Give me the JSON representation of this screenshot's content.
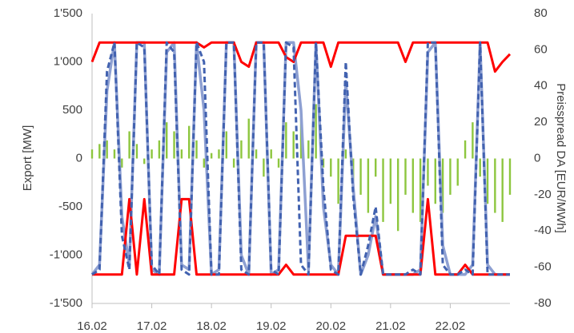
{
  "chart_data": {
    "type": "line",
    "ylabel": "Export [MW]",
    "y2label": "Preisspread DA [EUR/MWh]",
    "xlim": [
      16,
      23
    ],
    "xticks": [
      {
        "value": 16,
        "label": "16.02"
      },
      {
        "value": 17,
        "label": "17.02"
      },
      {
        "value": 18,
        "label": "18.02"
      },
      {
        "value": 19,
        "label": "19.02"
      },
      {
        "value": 20,
        "label": "20.02"
      },
      {
        "value": 21,
        "label": "21.02"
      },
      {
        "value": 22,
        "label": "22.02"
      }
    ],
    "ylim": [
      -1500,
      1500
    ],
    "yticks": [
      {
        "value": -1500,
        "label": "-1'500"
      },
      {
        "value": -1000,
        "label": "-1'000"
      },
      -500,
      0,
      500,
      {
        "value": 1000,
        "label": "1'000"
      },
      {
        "value": 1500,
        "label": "1'500"
      }
    ],
    "y2lim": [
      -80,
      80
    ],
    "y2ticks": [
      -80,
      -60,
      -40,
      -20,
      0,
      20,
      40,
      60,
      80
    ],
    "grid": false,
    "x": [
      16,
      16.125,
      16.25,
      16.375,
      16.5,
      16.625,
      16.75,
      16.875,
      17,
      17.125,
      17.25,
      17.375,
      17.5,
      17.625,
      17.75,
      17.875,
      18,
      18.125,
      18.25,
      18.375,
      18.5,
      18.625,
      18.75,
      18.875,
      19,
      19.125,
      19.25,
      19.375,
      19.5,
      19.625,
      19.75,
      19.875,
      20,
      20.125,
      20.25,
      20.375,
      20.5,
      20.625,
      20.75,
      20.875,
      21,
      21.125,
      21.25,
      21.375,
      21.5,
      21.625,
      21.75,
      21.875,
      22,
      22.125,
      22.25,
      22.375,
      22.5,
      22.625,
      22.75,
      22.875,
      23
    ],
    "series": [
      {
        "type": "bar",
        "axis": "y2",
        "color": "#8dc63f",
        "values": [
          5,
          8,
          10,
          5,
          -5,
          15,
          8,
          -3,
          5,
          10,
          20,
          15,
          5,
          18,
          10,
          -5,
          3,
          5,
          15,
          -5,
          10,
          22,
          5,
          -10,
          5,
          -5,
          20,
          15,
          25,
          10,
          30,
          -5,
          -10,
          -25,
          5,
          -15,
          -20,
          -30,
          -10,
          -35,
          -25,
          -40,
          -20,
          -30,
          -35,
          -15,
          -25,
          -30,
          -20,
          -15,
          10,
          20,
          -10,
          -25,
          -30,
          -35,
          -20
        ]
      },
      {
        "type": "line",
        "color": "#8ea0d2",
        "width": 3.5,
        "values": [
          -1200,
          -1100,
          700,
          1200,
          -600,
          -1100,
          1200,
          1200,
          -1150,
          -1200,
          1100,
          1200,
          -1100,
          -1150,
          1200,
          500,
          -1200,
          -1150,
          1200,
          1200,
          -1000,
          -1200,
          1200,
          1200,
          -1200,
          -1150,
          1200,
          1200,
          500,
          -1150,
          1200,
          -500,
          -1100,
          -1200,
          800,
          -300,
          -1200,
          -1000,
          -600,
          -1200,
          -1200,
          -1200,
          -1200,
          -1200,
          -1150,
          1100,
          1200,
          -900,
          -1200,
          -1200,
          -1200,
          -1100,
          1200,
          -1100,
          -1200,
          -1200,
          -1200
        ]
      },
      {
        "type": "line",
        "color": "#ff0000",
        "width": 3,
        "values": [
          1000,
          1200,
          1200,
          1200,
          1200,
          1200,
          1200,
          1200,
          1200,
          1200,
          1200,
          1200,
          1200,
          1200,
          1200,
          1150,
          1200,
          1200,
          1200,
          1200,
          1000,
          950,
          1200,
          1200,
          1200,
          1200,
          1050,
          1000,
          1200,
          1200,
          1200,
          1200,
          950,
          1200,
          1200,
          1200,
          1200,
          1200,
          1200,
          1200,
          1200,
          1200,
          1000,
          1200,
          1200,
          1200,
          1200,
          1200,
          1200,
          1200,
          1200,
          1200,
          1200,
          1200,
          900,
          1000,
          1080
        ]
      },
      {
        "type": "line",
        "color": "#ff0000",
        "width": 3,
        "values": [
          -1200,
          -1200,
          -1200,
          -1200,
          -1200,
          -420,
          -1200,
          -420,
          -1200,
          -1200,
          -1200,
          -1200,
          -420,
          -420,
          -1200,
          -1200,
          -1200,
          -1200,
          -1200,
          -1200,
          -1200,
          -1200,
          -1200,
          -1200,
          -1200,
          -1200,
          -1100,
          -1200,
          -1200,
          -1200,
          -1200,
          -1200,
          -1200,
          -1200,
          -800,
          -800,
          -800,
          -800,
          -800,
          -1200,
          -1200,
          -1200,
          -1200,
          -1200,
          -1200,
          -420,
          -1200,
          -1200,
          -1200,
          -1200,
          -1100,
          -1200,
          -1200,
          -1200,
          -1200,
          -1200,
          -1200
        ]
      },
      {
        "type": "line",
        "color": "#4262b0",
        "width": 3,
        "dash": true,
        "values": [
          -1200,
          -1150,
          900,
          1200,
          -800,
          -1150,
          1200,
          1150,
          -1100,
          -1200,
          1200,
          1100,
          -1150,
          -1200,
          1200,
          1000,
          -1200,
          -1200,
          1200,
          1200,
          -1150,
          -1200,
          1200,
          1200,
          -1150,
          -1200,
          1200,
          1150,
          -1100,
          -1200,
          1200,
          -300,
          -1150,
          -1200,
          1000,
          -400,
          -1200,
          -900,
          -500,
          -1200,
          -1200,
          -1200,
          -1200,
          -1150,
          -1200,
          1200,
          1200,
          -1100,
          -1200,
          -1200,
          -1150,
          -1200,
          1200,
          -1200,
          -1200,
          -1200,
          -1200
        ]
      }
    ]
  }
}
